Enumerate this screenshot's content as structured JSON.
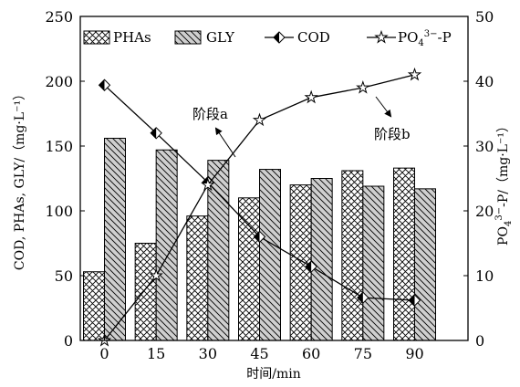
{
  "chart_data": {
    "type": "bar",
    "categories": [
      "0",
      "15",
      "30",
      "45",
      "60",
      "75",
      "90"
    ],
    "xlabel": "时间/min",
    "ylabel": "COD, PHAs, GLY/（mg·L⁻¹）",
    "y2label_parts": [
      "PO",
      "4",
      "3−",
      "-P/（mg·L⁻¹）"
    ],
    "ylim": [
      0,
      250
    ],
    "y2lim": [
      0,
      50
    ],
    "yticks": [
      "0",
      "50",
      "100",
      "150",
      "200",
      "250"
    ],
    "y2ticks": [
      "0",
      "10",
      "20",
      "30",
      "40",
      "50"
    ],
    "series": [
      {
        "name": "PHAs",
        "kind": "bar",
        "axis": "left",
        "fill": "crosshatch",
        "values": [
          53,
          75,
          96,
          110,
          120,
          131,
          133
        ]
      },
      {
        "name": "GLY",
        "kind": "bar",
        "axis": "left",
        "fill": "diagonal",
        "values": [
          156,
          147,
          139,
          132,
          125,
          119,
          117
        ]
      },
      {
        "name": "COD",
        "kind": "line",
        "axis": "left",
        "marker": "half-filled-diamond",
        "values": [
          197,
          160,
          122,
          80,
          57,
          33,
          31
        ]
      },
      {
        "name_parts": [
          "PO",
          "4",
          "3−",
          "-P"
        ],
        "kind": "line",
        "axis": "right",
        "marker": "star",
        "values": [
          0,
          10,
          24,
          34,
          37.5,
          39,
          41
        ]
      }
    ],
    "annotations": [
      {
        "text": "阶段a"
      },
      {
        "text": "阶段b"
      }
    ],
    "legend_placement": "top",
    "grid": false,
    "colors": {
      "bar_fill": "#cfcfcf",
      "ink": "#000000",
      "background": "#ffffff"
    }
  }
}
